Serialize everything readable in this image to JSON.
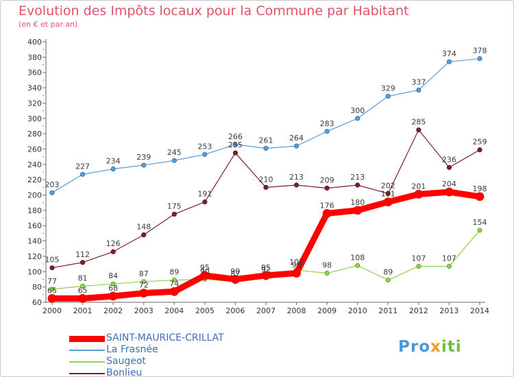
{
  "title": "Evolution des Impôts locaux pour la Commune par Habitant",
  "subtitle": "(en € et par an)",
  "logo_text": "Proxiti",
  "chart_data": {
    "type": "line",
    "x": [
      "2000",
      "2001",
      "2002",
      "2003",
      "2004",
      "2005",
      "2006",
      "2007",
      "2008",
      "2009",
      "2010",
      "2011",
      "2012",
      "2013",
      "2014"
    ],
    "ylim": [
      60,
      400
    ],
    "yticks": [
      60,
      80,
      100,
      120,
      140,
      160,
      180,
      200,
      220,
      240,
      260,
      280,
      300,
      320,
      340,
      360,
      380,
      400
    ],
    "grid": false,
    "legend_position": "bottom-left",
    "series": [
      {
        "name": "SAINT-MAURICE-CRILLAT",
        "color": "#ff0000",
        "values": [
          65,
          65,
          68,
          72,
          74,
          95,
          90,
          95,
          98,
          176,
          180,
          191,
          201,
          204,
          198
        ],
        "labels": [
          "65",
          "65",
          "68",
          "72",
          "74",
          "95",
          "90",
          "95",
          "98",
          "176",
          "180",
          "191",
          "201",
          "204",
          "198"
        ]
      },
      {
        "name": "La Frasnée",
        "color": "#5b9bd5",
        "values": [
          203,
          227,
          234,
          239,
          245,
          253,
          266,
          261,
          264,
          283,
          300,
          329,
          337,
          374,
          378
        ],
        "labels": [
          "203",
          "227",
          "234",
          "239",
          "245",
          "253",
          "266",
          "261",
          "264",
          "283",
          "300",
          "329",
          "337",
          "374",
          "378"
        ]
      },
      {
        "name": "Saugeot",
        "color": "#8fd14f",
        "values": [
          77,
          81,
          84,
          87,
          89,
          90,
          87,
          92,
          102,
          98,
          108,
          89,
          107,
          107,
          154
        ],
        "labels": [
          "77",
          "81",
          "84",
          "87",
          "89",
          "90",
          "87",
          "92",
          "102",
          "98",
          "108",
          "89",
          "107",
          "107",
          "154"
        ]
      },
      {
        "name": "Bonlieu",
        "color": "#7b2126",
        "values": [
          105,
          112,
          126,
          148,
          175,
          191,
          255,
          210,
          213,
          209,
          213,
          202,
          285,
          236,
          259
        ],
        "labels": [
          "105",
          "112",
          "126",
          "148",
          "175",
          "191",
          "255",
          "210",
          "213",
          "209",
          "213",
          "202",
          "285",
          "236",
          "259"
        ]
      }
    ]
  }
}
